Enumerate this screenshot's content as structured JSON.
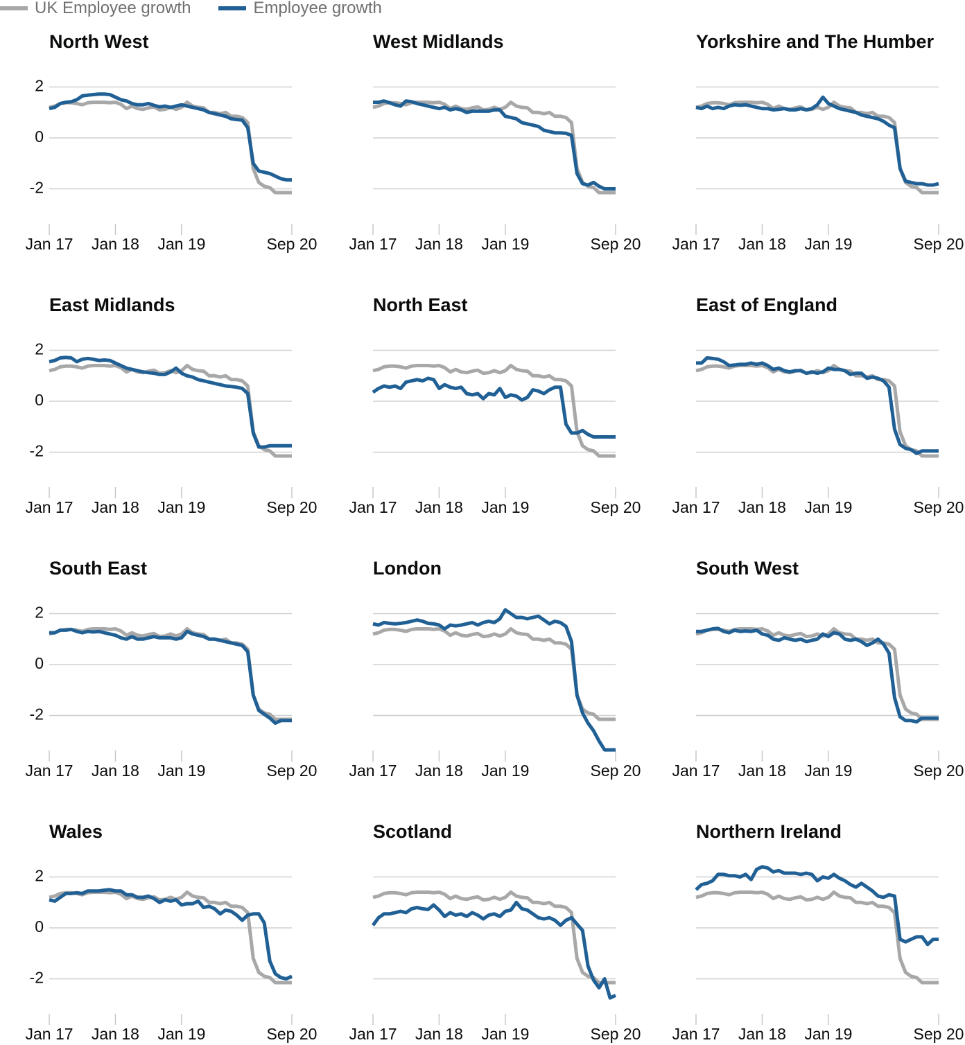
{
  "legend": {
    "uk_label": "UK Employee growth",
    "region_label": "Employee growth"
  },
  "colors": {
    "uk": "#a8a8a8",
    "region": "#206095",
    "grid": "#d0d0d0"
  },
  "chart_data": {
    "type": "line",
    "layout": "small-multiples",
    "ylim": [
      -3.5,
      2.5
    ],
    "y_ticks": [
      2,
      0,
      -2
    ],
    "y_tick_labels": [
      "2",
      "0",
      "-2"
    ],
    "x_tick_labels": [
      "Jan 17",
      "Jan 18",
      "Jan 19",
      "Sep 20"
    ],
    "x_tick_months": [
      0,
      12,
      24,
      44
    ],
    "x": [
      "Jan 17",
      "Feb 17",
      "Mar 17",
      "Apr 17",
      "May 17",
      "Jun 17",
      "Jul 17",
      "Aug 17",
      "Sep 17",
      "Oct 17",
      "Nov 17",
      "Dec 17",
      "Jan 18",
      "Feb 18",
      "Mar 18",
      "Apr 18",
      "May 18",
      "Jun 18",
      "Jul 18",
      "Aug 18",
      "Sep 18",
      "Oct 18",
      "Nov 18",
      "Dec 18",
      "Jan 19",
      "Feb 19",
      "Mar 19",
      "Apr 19",
      "May 19",
      "Jun 19",
      "Jul 19",
      "Aug 19",
      "Sep 19",
      "Oct 19",
      "Nov 19",
      "Dec 19",
      "Jan 20",
      "Feb 20",
      "Mar 20",
      "Apr 20",
      "May 20",
      "Jun 20",
      "Jul 20",
      "Aug 20",
      "Sep 20"
    ],
    "uk_series": [
      1.2,
      1.25,
      1.35,
      1.38,
      1.38,
      1.35,
      1.3,
      1.38,
      1.4,
      1.4,
      1.4,
      1.38,
      1.4,
      1.32,
      1.15,
      1.25,
      1.15,
      1.12,
      1.18,
      1.22,
      1.1,
      1.12,
      1.2,
      1.12,
      1.2,
      1.4,
      1.25,
      1.2,
      1.18,
      1.0,
      1.0,
      0.95,
      1.0,
      0.85,
      0.85,
      0.8,
      0.6,
      -1.2,
      -1.75,
      -1.9,
      -1.95,
      -2.15,
      -2.15,
      -2.15,
      -2.15
    ],
    "panels": [
      {
        "title": "North West",
        "values": [
          1.15,
          1.2,
          1.35,
          1.4,
          1.42,
          1.5,
          1.65,
          1.68,
          1.7,
          1.72,
          1.72,
          1.7,
          1.6,
          1.5,
          1.45,
          1.35,
          1.3,
          1.3,
          1.35,
          1.28,
          1.22,
          1.25,
          1.2,
          1.25,
          1.3,
          1.25,
          1.2,
          1.15,
          1.1,
          1.0,
          0.95,
          0.9,
          0.85,
          0.75,
          0.72,
          0.7,
          0.4,
          -1.0,
          -1.3,
          -1.35,
          -1.4,
          -1.5,
          -1.6,
          -1.65,
          -1.65
        ]
      },
      {
        "title": "West Midlands",
        "values": [
          1.4,
          1.4,
          1.45,
          1.38,
          1.3,
          1.25,
          1.45,
          1.42,
          1.35,
          1.3,
          1.25,
          1.2,
          1.15,
          1.2,
          1.1,
          1.15,
          1.1,
          1.0,
          1.05,
          1.05,
          1.05,
          1.05,
          1.1,
          1.1,
          0.85,
          0.8,
          0.75,
          0.6,
          0.55,
          0.5,
          0.45,
          0.3,
          0.25,
          0.2,
          0.2,
          0.18,
          0.1,
          -1.4,
          -1.8,
          -1.85,
          -1.75,
          -1.9,
          -2.0,
          -2.0,
          -2.0
        ]
      },
      {
        "title": "Yorkshire and The Humber",
        "values": [
          1.2,
          1.15,
          1.25,
          1.15,
          1.2,
          1.15,
          1.25,
          1.3,
          1.28,
          1.3,
          1.25,
          1.2,
          1.15,
          1.15,
          1.1,
          1.12,
          1.15,
          1.1,
          1.1,
          1.15,
          1.1,
          1.15,
          1.3,
          1.6,
          1.35,
          1.25,
          1.15,
          1.1,
          1.05,
          1.0,
          0.9,
          0.85,
          0.8,
          0.75,
          0.65,
          0.5,
          0.4,
          -1.2,
          -1.7,
          -1.75,
          -1.8,
          -1.8,
          -1.85,
          -1.85,
          -1.8
        ]
      },
      {
        "title": "East Midlands",
        "values": [
          1.55,
          1.6,
          1.7,
          1.72,
          1.7,
          1.55,
          1.65,
          1.68,
          1.65,
          1.6,
          1.62,
          1.6,
          1.5,
          1.4,
          1.3,
          1.25,
          1.2,
          1.15,
          1.12,
          1.1,
          1.05,
          1.05,
          1.15,
          1.3,
          1.1,
          1.0,
          0.95,
          0.85,
          0.8,
          0.75,
          0.7,
          0.65,
          0.6,
          0.58,
          0.55,
          0.5,
          0.3,
          -1.25,
          -1.8,
          -1.8,
          -1.75,
          -1.75,
          -1.75,
          -1.75,
          -1.75
        ]
      },
      {
        "title": "North East",
        "values": [
          0.35,
          0.5,
          0.6,
          0.55,
          0.6,
          0.5,
          0.75,
          0.8,
          0.85,
          0.8,
          0.9,
          0.85,
          0.5,
          0.65,
          0.55,
          0.5,
          0.55,
          0.3,
          0.25,
          0.3,
          0.1,
          0.3,
          0.25,
          0.5,
          0.15,
          0.25,
          0.2,
          0.05,
          0.15,
          0.45,
          0.4,
          0.3,
          0.45,
          0.55,
          0.55,
          -0.9,
          -1.25,
          -1.25,
          -1.15,
          -1.3,
          -1.4,
          -1.4,
          -1.4,
          -1.4,
          -1.4
        ]
      },
      {
        "title": "East of England",
        "values": [
          1.5,
          1.5,
          1.7,
          1.68,
          1.65,
          1.55,
          1.4,
          1.42,
          1.45,
          1.45,
          1.5,
          1.45,
          1.5,
          1.4,
          1.25,
          1.3,
          1.2,
          1.15,
          1.2,
          1.2,
          1.1,
          1.15,
          1.1,
          1.15,
          1.3,
          1.25,
          1.25,
          1.2,
          1.05,
          1.1,
          1.1,
          0.9,
          0.95,
          0.9,
          0.8,
          0.55,
          -1.1,
          -1.7,
          -1.85,
          -1.9,
          -2.05,
          -1.95,
          -1.95,
          -1.95,
          -1.95
        ]
      },
      {
        "title": "South East",
        "values": [
          1.25,
          1.25,
          1.35,
          1.35,
          1.38,
          1.3,
          1.25,
          1.3,
          1.28,
          1.3,
          1.25,
          1.2,
          1.15,
          1.05,
          1.0,
          1.1,
          1.0,
          1.0,
          1.05,
          1.1,
          1.05,
          1.05,
          1.05,
          1.0,
          1.05,
          1.3,
          1.2,
          1.15,
          1.1,
          1.0,
          1.0,
          0.95,
          0.9,
          0.85,
          0.8,
          0.75,
          0.5,
          -1.2,
          -1.8,
          -1.95,
          -2.1,
          -2.3,
          -2.2,
          -2.2,
          -2.2
        ]
      },
      {
        "title": "London",
        "values": [
          1.6,
          1.55,
          1.65,
          1.62,
          1.6,
          1.62,
          1.65,
          1.7,
          1.75,
          1.7,
          1.62,
          1.6,
          1.55,
          1.4,
          1.55,
          1.52,
          1.55,
          1.6,
          1.65,
          1.55,
          1.65,
          1.7,
          1.65,
          1.8,
          2.15,
          2.0,
          1.85,
          1.85,
          1.8,
          1.85,
          1.9,
          1.75,
          1.6,
          1.7,
          1.65,
          1.5,
          0.9,
          -1.2,
          -1.9,
          -2.3,
          -2.6,
          -3.0,
          -3.35,
          -3.35,
          -3.35
        ]
      },
      {
        "title": "South West",
        "values": [
          1.3,
          1.3,
          1.35,
          1.4,
          1.42,
          1.3,
          1.25,
          1.35,
          1.3,
          1.32,
          1.3,
          1.35,
          1.2,
          1.15,
          1.0,
          0.95,
          1.05,
          1.0,
          0.95,
          1.0,
          0.9,
          0.95,
          1.0,
          1.2,
          1.1,
          1.25,
          1.2,
          1.0,
          0.95,
          1.0,
          0.9,
          0.75,
          0.85,
          1.0,
          0.8,
          0.45,
          -1.3,
          -2.05,
          -2.2,
          -2.2,
          -2.25,
          -2.1,
          -2.1,
          -2.1,
          -2.1
        ]
      },
      {
        "title": "Wales",
        "values": [
          1.1,
          1.05,
          1.2,
          1.35,
          1.35,
          1.38,
          1.35,
          1.45,
          1.45,
          1.45,
          1.48,
          1.5,
          1.45,
          1.45,
          1.3,
          1.3,
          1.2,
          1.2,
          1.25,
          1.15,
          1.0,
          1.1,
          1.05,
          1.1,
          0.9,
          0.95,
          0.95,
          1.05,
          0.8,
          0.85,
          0.75,
          0.55,
          0.7,
          0.65,
          0.5,
          0.3,
          0.5,
          0.55,
          0.55,
          0.2,
          -1.3,
          -1.8,
          -1.95,
          -2.0,
          -1.9
        ]
      },
      {
        "title": "Scotland",
        "values": [
          0.1,
          0.4,
          0.55,
          0.55,
          0.6,
          0.65,
          0.6,
          0.75,
          0.8,
          0.75,
          0.72,
          0.9,
          0.7,
          0.45,
          0.6,
          0.5,
          0.55,
          0.45,
          0.6,
          0.5,
          0.35,
          0.5,
          0.55,
          0.45,
          0.65,
          0.7,
          1.0,
          0.75,
          0.7,
          0.55,
          0.4,
          0.35,
          0.4,
          0.3,
          0.1,
          0.3,
          0.4,
          0.15,
          -0.1,
          -1.5,
          -2.05,
          -2.35,
          -2.0,
          -2.75,
          -2.65
        ]
      },
      {
        "title": "Northern Ireland",
        "values": [
          1.5,
          1.7,
          1.75,
          1.85,
          2.1,
          2.1,
          2.05,
          2.05,
          2.0,
          2.1,
          1.9,
          2.3,
          2.4,
          2.35,
          2.2,
          2.25,
          2.15,
          2.15,
          2.15,
          2.1,
          2.15,
          2.1,
          1.85,
          2.0,
          1.95,
          2.1,
          1.95,
          1.85,
          1.7,
          1.6,
          1.75,
          1.6,
          1.45,
          1.25,
          1.2,
          1.3,
          1.25,
          -0.45,
          -0.55,
          -0.45,
          -0.35,
          -0.35,
          -0.65,
          -0.45,
          -0.45
        ]
      }
    ]
  }
}
